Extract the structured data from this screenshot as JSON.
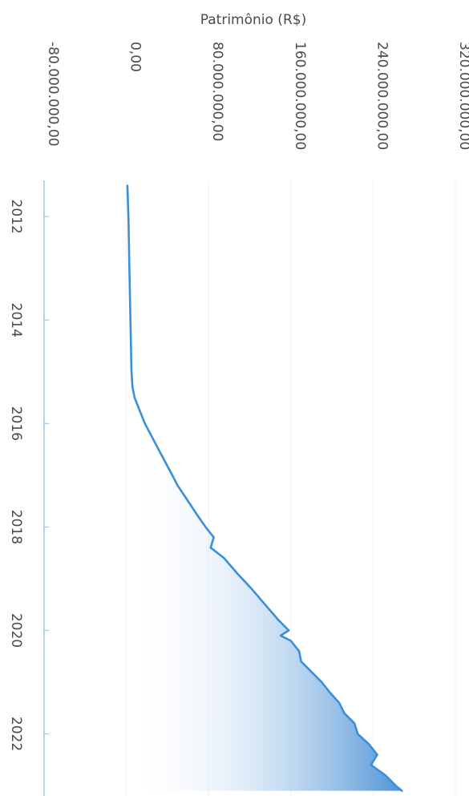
{
  "chart_data": {
    "type": "area",
    "title": "",
    "ylabel": "Patrimônio (R$)",
    "xlabel": "",
    "orientation": "rotated-90-clockwise",
    "xlim": [
      2011.3,
      2023.2
    ],
    "ylim": [
      -80000000,
      320000000
    ],
    "y_ticks": [
      -80000000,
      0,
      80000000,
      160000000,
      240000000,
      320000000
    ],
    "y_tick_labels": [
      "-80.000.000,00",
      "0,00",
      "80.000.000,00",
      "160.000.000,00",
      "240.000.000,00",
      "320.000.000,00"
    ],
    "x_ticks": [
      2012,
      2014,
      2016,
      2018,
      2020,
      2022
    ],
    "x_tick_labels": [
      "2012",
      "2014",
      "2016",
      "2018",
      "2020",
      "2022"
    ],
    "grid": true,
    "line_color": "#3a8fd8",
    "fill_color_light": "#ffffff",
    "fill_color_dark": "#3f8ad2",
    "series": [
      {
        "x": [
          2011.4,
          2012.0,
          2013.0,
          2014.0,
          2015.0,
          2015.3,
          2015.5,
          2015.7,
          2016.0,
          2016.3,
          2016.6,
          2016.9,
          2017.2,
          2017.5,
          2017.8,
          2018.0,
          2018.2,
          2018.4,
          2018.6,
          2018.9,
          2019.2,
          2019.5,
          2019.8,
          2020.0,
          2020.1,
          2020.2,
          2020.4,
          2020.6,
          2020.8,
          2021.0,
          2021.2,
          2021.4,
          2021.6,
          2021.8,
          2022.0,
          2022.2,
          2022.4,
          2022.6,
          2022.8,
          2023.0,
          2023.1
        ],
        "y": [
          1000000,
          2000000,
          3000000,
          4000000,
          5000000,
          6000000,
          8000000,
          12000000,
          18000000,
          26000000,
          34000000,
          42000000,
          50000000,
          60000000,
          70000000,
          77000000,
          85000000,
          82000000,
          95000000,
          108000000,
          122000000,
          135000000,
          148000000,
          158000000,
          150000000,
          160000000,
          168000000,
          170000000,
          180000000,
          190000000,
          198000000,
          207000000,
          212000000,
          222000000,
          225000000,
          236000000,
          244000000,
          238000000,
          252000000,
          262000000,
          268000000
        ]
      }
    ]
  }
}
